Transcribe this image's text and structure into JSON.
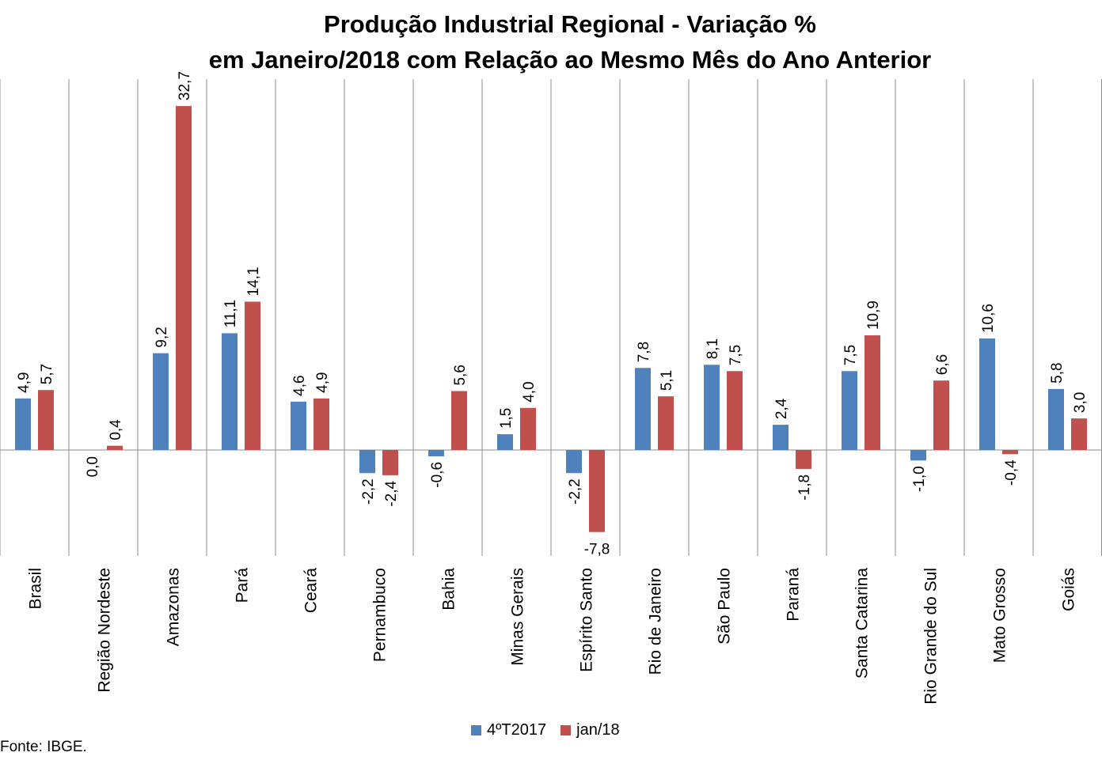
{
  "chart_data": {
    "type": "bar",
    "title_line1": "Produção Industrial Regional - Variação %",
    "title_line2": "em Janeiro/2018 com Relação ao Mesmo Mês do Ano Anterior",
    "categories": [
      "Brasil",
      "Região Nordeste",
      "Amazonas",
      "Pará",
      "Ceará",
      "Pernambuco",
      "Bahia",
      "Minas Gerais",
      "Espírito Santo",
      "Rio de Janeiro",
      "São Paulo",
      "Paraná",
      "Santa Catarina",
      "Rio Grande do Sul",
      "Mato Grosso",
      "Goiás"
    ],
    "series": [
      {
        "name": "4ºT2017",
        "color": "#4f81bd",
        "values": [
          4.9,
          0.0,
          9.2,
          11.1,
          4.6,
          -2.2,
          -0.6,
          1.5,
          -2.2,
          7.8,
          8.1,
          2.4,
          7.5,
          -1.0,
          10.6,
          5.8
        ],
        "labels": [
          "4,9",
          "0,0",
          "9,2",
          "11,1",
          "4,6",
          "-2,2",
          "-0,6",
          "1,5",
          "-2,2",
          "7,8",
          "8,1",
          "2,4",
          "7,5",
          "-1,0",
          "10,6",
          "5,8"
        ]
      },
      {
        "name": "jan/18",
        "color": "#c0504d",
        "values": [
          5.7,
          0.4,
          32.7,
          14.1,
          4.9,
          -2.4,
          5.6,
          4.0,
          -7.8,
          5.1,
          7.5,
          -1.8,
          10.9,
          6.6,
          -0.4,
          3.0
        ],
        "labels": [
          "5,7",
          "0,4",
          "32,7",
          "14,1",
          "4,9",
          "-2,4",
          "5,6",
          "4,0",
          "-7,8",
          "5,1",
          "7,5",
          "-1,8",
          "10,9",
          "6,6",
          "-0,4",
          "3,0"
        ]
      }
    ],
    "ylim": [
      -10,
      35
    ],
    "grid": "vertical category separators",
    "legend_position": "bottom"
  },
  "source_note": "Fonte: IBGE."
}
